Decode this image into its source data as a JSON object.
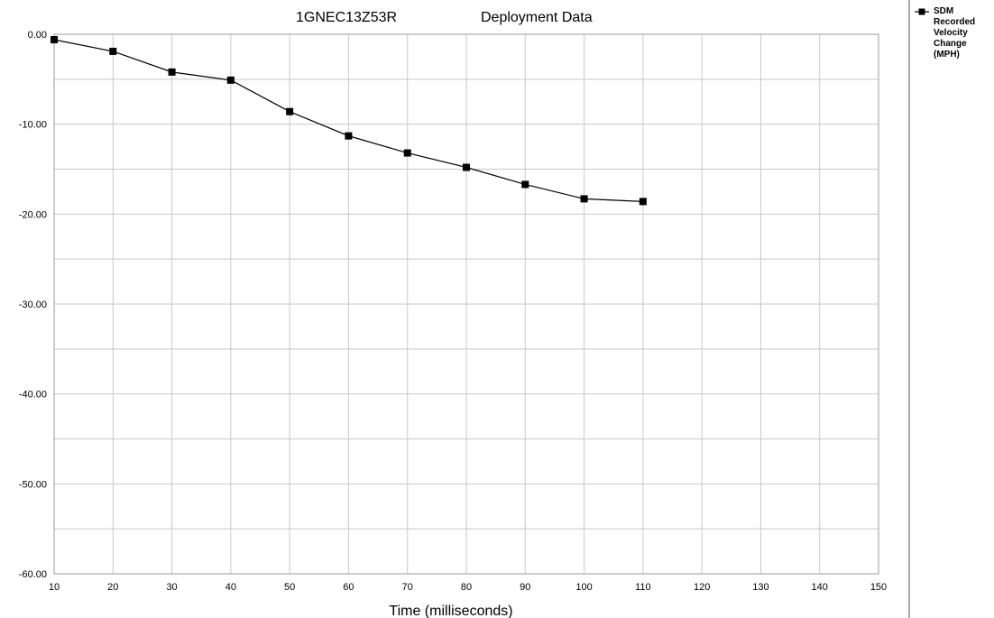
{
  "chart_data": {
    "type": "line",
    "title": "1GNEC13Z53R",
    "title_suffix": "Deployment Data",
    "xlabel": "Time (milliseconds)",
    "ylabel": "",
    "xlim": [
      10,
      150
    ],
    "ylim": [
      -60,
      0
    ],
    "x_ticks": [
      10,
      20,
      30,
      40,
      50,
      60,
      70,
      80,
      90,
      100,
      110,
      120,
      130,
      140,
      150
    ],
    "y_ticks": [
      "0.00",
      "-10.00",
      "-20.00",
      "-30.00",
      "-40.00",
      "-50.00",
      "-60.00"
    ],
    "y_minor_step": 5,
    "grid": true,
    "legend_position": "right",
    "series": [
      {
        "name": "SDM Recorded Velocity Change (MPH)",
        "legend_lines": [
          "SDM",
          "Recorded",
          "Velocity",
          "Change",
          "(MPH)"
        ],
        "color": "#000000",
        "marker": "square",
        "x": [
          10,
          20,
          30,
          40,
          50,
          60,
          70,
          80,
          90,
          100,
          110
        ],
        "y": [
          -0.6,
          -1.9,
          -4.2,
          -5.1,
          -8.6,
          -11.3,
          -13.2,
          -14.8,
          -16.7,
          -18.3,
          -18.6
        ]
      }
    ]
  }
}
